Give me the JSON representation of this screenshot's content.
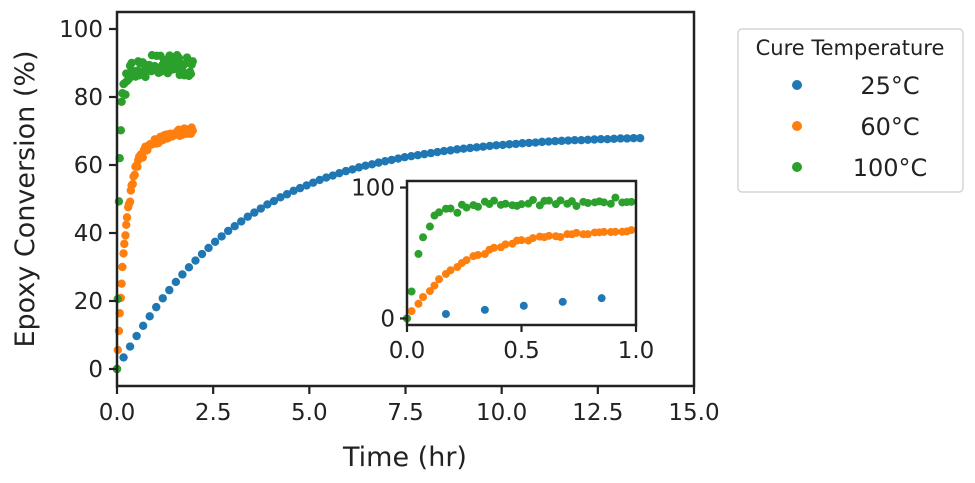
{
  "chart_data": {
    "type": "scatter",
    "xlabel": "Time (hr)",
    "ylabel": "Epoxy Conversion (%)",
    "xlim": [
      0,
      15
    ],
    "ylim": [
      -5,
      105
    ],
    "xticks": [
      "0.0",
      "2.5",
      "5.0",
      "7.5",
      "10.0",
      "12.5",
      "15.0"
    ],
    "yticks": [
      "0",
      "20",
      "40",
      "60",
      "80",
      "100"
    ],
    "grid": false,
    "legend": {
      "title": "Cure Temperature",
      "position": "outside-right",
      "entries": [
        "25°C",
        "60°C",
        "100°C"
      ]
    },
    "colors": {
      "25°C": "#1f77b4",
      "60°C": "#ff7f0e",
      "100°C": "#2ca02c"
    },
    "series": [
      {
        "name": "25°C",
        "color": "#1f77b4",
        "x": [
          0.0,
          0.17,
          0.34,
          0.51,
          0.68,
          0.85,
          1.02,
          1.19,
          1.36,
          1.53,
          1.7,
          1.87,
          2.04,
          2.21,
          2.38,
          2.55,
          2.72,
          2.89,
          3.06,
          3.23,
          3.4,
          3.57,
          3.74,
          3.91,
          4.08,
          4.25,
          4.42,
          4.59,
          4.76,
          4.93,
          5.1,
          5.27,
          5.44,
          5.61,
          5.78,
          5.95,
          6.12,
          6.29,
          6.46,
          6.63,
          6.8,
          6.97,
          7.14,
          7.31,
          7.48,
          7.65,
          7.82,
          7.99,
          8.16,
          8.33,
          8.5,
          8.67,
          8.84,
          9.01,
          9.18,
          9.35,
          9.52,
          9.69,
          9.86,
          10.03,
          10.2,
          10.37,
          10.54,
          10.71,
          10.88,
          11.05,
          11.22,
          11.39,
          11.56,
          11.73,
          11.9,
          12.07,
          12.24,
          12.41,
          12.58,
          12.75,
          12.92,
          13.09,
          13.26,
          13.43,
          13.6
        ],
        "y": [
          0.0,
          3.4,
          6.6,
          9.7,
          12.7,
          15.5,
          18.2,
          20.8,
          23.2,
          25.6,
          27.8,
          29.9,
          31.9,
          33.8,
          35.6,
          37.4,
          39.0,
          40.6,
          42.0,
          43.4,
          44.8,
          46.0,
          47.2,
          48.4,
          49.4,
          50.5,
          51.4,
          52.4,
          53.2,
          54.0,
          54.8,
          55.6,
          56.3,
          56.9,
          57.6,
          58.2,
          58.7,
          59.3,
          59.8,
          60.2,
          60.7,
          61.1,
          61.5,
          61.9,
          62.3,
          62.6,
          62.9,
          63.2,
          63.5,
          63.8,
          64.1,
          64.3,
          64.6,
          64.8,
          65.0,
          65.2,
          65.4,
          65.6,
          65.8,
          65.9,
          66.1,
          66.2,
          66.4,
          66.5,
          66.6,
          66.8,
          66.9,
          67.0,
          67.1,
          67.2,
          67.3,
          67.3,
          67.4,
          67.5,
          67.6,
          67.6,
          67.7,
          67.8,
          67.8,
          67.9,
          67.9
        ]
      },
      {
        "name": "60°C",
        "color": "#ff7f0e",
        "x": [
          0.0,
          0.02,
          0.05,
          0.07,
          0.1,
          0.12,
          0.14,
          0.17,
          0.19,
          0.22,
          0.24,
          0.26,
          0.29,
          0.31,
          0.34,
          0.36,
          0.38,
          0.41,
          0.43,
          0.46,
          0.48,
          0.5,
          0.53,
          0.55,
          0.58,
          0.6,
          0.62,
          0.65,
          0.67,
          0.7,
          0.72,
          0.74,
          0.77,
          0.79,
          0.82,
          0.84,
          0.86,
          0.89,
          0.91,
          0.94,
          0.96,
          0.98,
          1.01,
          1.03,
          1.06,
          1.08,
          1.1,
          1.13,
          1.15,
          1.18,
          1.2,
          1.22,
          1.25,
          1.27,
          1.3,
          1.32,
          1.34,
          1.37,
          1.39,
          1.42,
          1.44,
          1.46,
          1.49,
          1.51,
          1.54,
          1.56,
          1.58,
          1.61,
          1.63,
          1.66,
          1.68,
          1.7,
          1.73,
          1.75,
          1.78,
          1.8,
          1.82,
          1.85,
          1.87,
          1.9,
          1.92,
          1.94,
          1.97
        ],
        "y": [
          0.0,
          5.6,
          11.2,
          16.4,
          20.9,
          25.1,
          30.0,
          34.0,
          36.8,
          39.3,
          42.4,
          44.6,
          47.6,
          48.5,
          49.2,
          52.5,
          54.0,
          54.4,
          56.6,
          57.1,
          59.5,
          59.8,
          59.5,
          61.4,
          62.5,
          62.1,
          63.1,
          62.8,
          62.2,
          64.4,
          64.3,
          65.4,
          64.3,
          64.4,
          65.7,
          65.8,
          66.1,
          66.0,
          66.2,
          66.2,
          66.5,
          67.5,
          67.5,
          66.3,
          67.4,
          66.5,
          67.6,
          68.3,
          67.7,
          67.3,
          67.4,
          68.7,
          68.1,
          68.9,
          67.8,
          69.0,
          68.0,
          68.4,
          69.2,
          69.0,
          68.4,
          69.1,
          69.2,
          69.1,
          69.5,
          69.0,
          70.1,
          70.4,
          68.6,
          69.2,
          69.9,
          68.9,
          69.4,
          70.7,
          69.7,
          70.5,
          69.2,
          70.1,
          70.1,
          70.1,
          69.2,
          71.0,
          70.1
        ]
      },
      {
        "name": "100°C",
        "color": "#2ca02c",
        "x": [
          0.0,
          0.02,
          0.05,
          0.07,
          0.1,
          0.12,
          0.14,
          0.17,
          0.19,
          0.22,
          0.24,
          0.26,
          0.29,
          0.31,
          0.34,
          0.36,
          0.38,
          0.41,
          0.43,
          0.46,
          0.48,
          0.5,
          0.53,
          0.55,
          0.58,
          0.6,
          0.62,
          0.65,
          0.67,
          0.7,
          0.72,
          0.74,
          0.77,
          0.79,
          0.82,
          0.84,
          0.86,
          0.89,
          0.91,
          0.94,
          0.96,
          0.98,
          1.01,
          1.03,
          1.06,
          1.08,
          1.1,
          1.13,
          1.15,
          1.18,
          1.2,
          1.22,
          1.25,
          1.27,
          1.3,
          1.32,
          1.34,
          1.37,
          1.39,
          1.42,
          1.44,
          1.46,
          1.49,
          1.51,
          1.54,
          1.56,
          1.58,
          1.61,
          1.63,
          1.66,
          1.68,
          1.7,
          1.73,
          1.75,
          1.78,
          1.8,
          1.82,
          1.85,
          1.87,
          1.9,
          1.92,
          1.94,
          1.97
        ],
        "y": [
          0.0,
          20.6,
          49.3,
          62.0,
          70.2,
          78.6,
          81.1,
          83.8,
          84.0,
          80.7,
          86.9,
          84.7,
          86.6,
          85.3,
          89.2,
          87.4,
          90.0,
          86.8,
          87.6,
          86.5,
          86.0,
          87.3,
          87.7,
          90.5,
          86.4,
          89.8,
          90.0,
          87.3,
          90.2,
          87.6,
          89.6,
          85.9,
          89.1,
          88.2,
          88.7,
          89.4,
          88.7,
          87.6,
          92.3,
          88.6,
          88.9,
          89.1,
          87.9,
          92.1,
          88.5,
          87.1,
          88.0,
          92.1,
          87.5,
          89.4,
          88.6,
          90.9,
          88.6,
          89.6,
          91.1,
          87.0,
          90.1,
          92.2,
          87.9,
          88.3,
          90.6,
          88.2,
          88.2,
          89.9,
          88.9,
          92.3,
          88.6,
          91.5,
          86.5,
          89.7,
          88.9,
          87.7,
          89.4,
          86.4,
          89.9,
          86.9,
          91.6,
          90.2,
          86.2,
          87.4,
          86.8,
          89.5,
          90.5
        ]
      }
    ],
    "inset": {
      "type": "scatter",
      "xlim": [
        0.0,
        1.0
      ],
      "ylim": [
        -5,
        105
      ],
      "xticks": [
        "0.0",
        "0.5",
        "1.0"
      ],
      "yticks": [
        "0",
        "100"
      ]
    }
  }
}
